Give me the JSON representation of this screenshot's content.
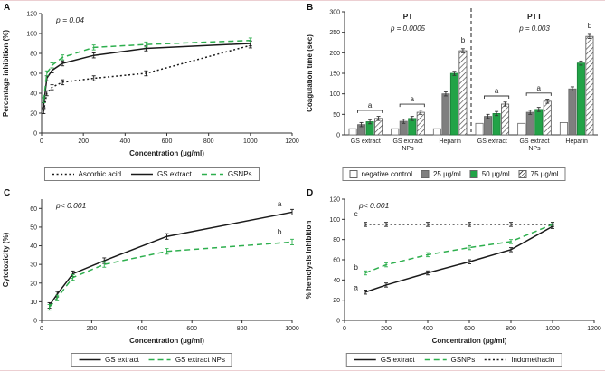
{
  "figure": {
    "panel_letters": [
      "A",
      "B",
      "C",
      "D"
    ],
    "accent_green": "#2eaf4e",
    "bar_green": "#22a347",
    "bar_gray": "#7f7f7f"
  },
  "chart_data": [
    {
      "panel": "A",
      "type": "line",
      "p_text": "p = 0.04",
      "xlabel": "Concentration (µg/ml)",
      "ylabel": "Percentage inhibition (%)",
      "xlim": [
        0,
        1200
      ],
      "xticks": [
        0,
        200,
        400,
        600,
        800,
        1000,
        1200
      ],
      "ylim": [
        0,
        120
      ],
      "yticks": [
        0,
        20,
        40,
        60,
        80,
        100,
        120
      ],
      "yerr": 2.5,
      "legend_position": "bottom",
      "series": [
        {
          "name": "Ascorbic acid",
          "style": "dotted",
          "color": "#1a1a1a",
          "x": [
            10,
            25,
            50,
            100,
            250,
            500,
            1000
          ],
          "y": [
            22,
            40,
            46,
            51,
            55,
            60,
            88
          ]
        },
        {
          "name": "GS extract",
          "style": "solid",
          "color": "#1a1a1a",
          "x": [
            10,
            25,
            50,
            100,
            250,
            500,
            1000
          ],
          "y": [
            28,
            55,
            63,
            70,
            78,
            85,
            90
          ]
        },
        {
          "name": "GSNPs",
          "style": "dashed",
          "color": "#2eaf4e",
          "x": [
            10,
            25,
            50,
            100,
            250,
            500,
            1000
          ],
          "y": [
            33,
            60,
            68,
            76,
            86,
            89,
            93
          ]
        }
      ],
      "annotations": []
    },
    {
      "panel": "B",
      "type": "bar",
      "ylabel": "Coagulation time (sec)",
      "ylim": [
        0,
        300
      ],
      "yticks": [
        0,
        50,
        100,
        150,
        200,
        250,
        300
      ],
      "yerr": 5,
      "sections": [
        {
          "label": "PT",
          "p_text": "p = 0.0005"
        },
        {
          "label": "PTT",
          "p_text": "p = 0.003"
        }
      ],
      "series_labels": [
        "negative control",
        "25 µg/ml",
        "50 µg/ml",
        "75 µg/ml"
      ],
      "bar_styles": [
        {
          "label": "negative control",
          "fill": "#ffffff",
          "stroke": "#666666"
        },
        {
          "label": "25 µg/ml",
          "fill": "#7f7f7f",
          "stroke": "#666666"
        },
        {
          "label": "50 µg/ml",
          "fill": "#22a347",
          "stroke": "#1b7d37"
        },
        {
          "label": "75 µg/ml",
          "fill": "hatch",
          "stroke": "#555555"
        }
      ],
      "groups": [
        {
          "label": "GS extract",
          "section": 0,
          "values": [
            15,
            25,
            32,
            40
          ],
          "annotation": "a"
        },
        {
          "label": "GS extract\nNPs",
          "section": 0,
          "values": [
            15,
            33,
            40,
            55
          ],
          "annotation": "a"
        },
        {
          "label": "Heparin",
          "section": 0,
          "values": [
            15,
            100,
            150,
            205
          ],
          "annotation": "b"
        },
        {
          "label": "GS extract",
          "section": 1,
          "values": [
            28,
            45,
            52,
            75
          ],
          "annotation": "a"
        },
        {
          "label": "GS extract\nNPs",
          "section": 1,
          "values": [
            28,
            55,
            62,
            82
          ],
          "annotation": "a"
        },
        {
          "label": "Heparin",
          "section": 1,
          "values": [
            30,
            112,
            175,
            240
          ],
          "annotation": "b"
        }
      ]
    },
    {
      "panel": "C",
      "type": "line",
      "p_text": "p< 0.001",
      "xlabel": "Concentration (µg/ml)",
      "ylabel": "Cytotoxicity (%)",
      "xlim": [
        0,
        1000
      ],
      "xticks": [
        0,
        200,
        400,
        600,
        800,
        1000
      ],
      "ylim": [
        0,
        65
      ],
      "yticks": [
        0,
        10,
        20,
        30,
        40,
        50,
        60
      ],
      "yerr": 1.5,
      "legend_position": "bottom",
      "series": [
        {
          "name": "GS extract",
          "style": "solid",
          "color": "#1a1a1a",
          "x": [
            31,
            62,
            125,
            250,
            500,
            1000
          ],
          "y": [
            8,
            14,
            25,
            32,
            45,
            58
          ]
        },
        {
          "name": "GS extract NPs",
          "style": "dashed",
          "color": "#2eaf4e",
          "x": [
            31,
            62,
            125,
            250,
            500,
            1000
          ],
          "y": [
            7,
            12,
            23,
            30,
            37,
            42
          ]
        }
      ],
      "annotations": [
        {
          "text": "a",
          "x": 950,
          "y": 61
        },
        {
          "text": "b",
          "x": 950,
          "y": 46
        }
      ]
    },
    {
      "panel": "D",
      "type": "line",
      "p_text": "p< 0.001",
      "xlabel": "Concentration (µg/ml)",
      "ylabel": "% hemolysis inhibition",
      "xlim": [
        0,
        1200
      ],
      "xticks": [
        0,
        200,
        400,
        600,
        800,
        1000,
        1200
      ],
      "ylim": [
        0,
        120
      ],
      "yticks": [
        0,
        20,
        40,
        60,
        80,
        100,
        120
      ],
      "yerr": 2,
      "legend_position": "bottom",
      "series": [
        {
          "name": "GS extract",
          "style": "solid",
          "color": "#1a1a1a",
          "x": [
            100,
            200,
            400,
            600,
            800,
            1000
          ],
          "y": [
            28,
            35,
            47,
            58,
            70,
            93
          ]
        },
        {
          "name": "GSNPs",
          "style": "dashed",
          "color": "#2eaf4e",
          "x": [
            100,
            200,
            400,
            600,
            800,
            1000
          ],
          "y": [
            47,
            55,
            65,
            72,
            78,
            95
          ]
        },
        {
          "name": "Indomethacin",
          "style": "dotted",
          "color": "#1a1a1a",
          "x": [
            100,
            200,
            400,
            600,
            800,
            1000
          ],
          "y": [
            95,
            95,
            95,
            95,
            95,
            95
          ]
        }
      ],
      "annotations": [
        {
          "text": "a",
          "x": 55,
          "y": 30
        },
        {
          "text": "b",
          "x": 55,
          "y": 50
        },
        {
          "text": "c",
          "x": 55,
          "y": 103
        }
      ]
    }
  ]
}
